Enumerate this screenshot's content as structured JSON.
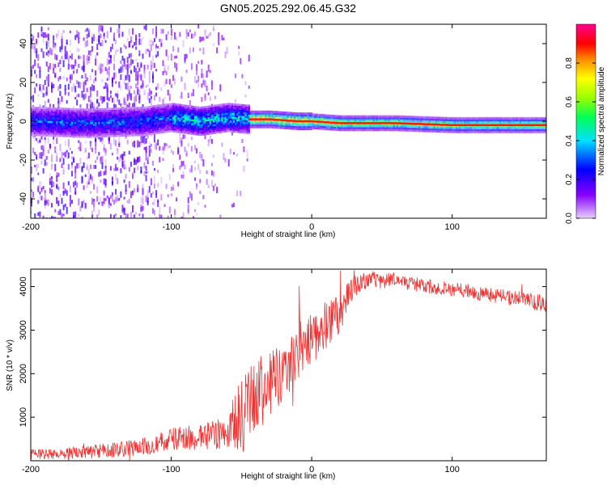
{
  "page": {
    "title": "GN05.2025.292.06.45.G32"
  },
  "chart_data": [
    {
      "type": "heatmap",
      "name": "spectrogram",
      "title": "GN05.2025.292.06.45.G32",
      "xlabel": "Height of straight line (km)",
      "ylabel": "Frequency (Hz)",
      "xlim": [
        -200,
        167
      ],
      "ylim": [
        -50,
        50
      ],
      "xticks": [
        -200,
        -100,
        0,
        100
      ],
      "xtick_labels": [
        "-200",
        "-100",
        "0",
        "100"
      ],
      "yticks": [
        -40,
        -20,
        0,
        20,
        40
      ],
      "ytick_labels": [
        "-40",
        "-20",
        "0",
        "20",
        "40"
      ],
      "ridge": {
        "description": "Dominant frequency ridge vs height",
        "x": [
          -200,
          -160,
          -120,
          -100,
          -80,
          -60,
          -45,
          -30,
          -10,
          0,
          20,
          60,
          100,
          120,
          167
        ],
        "y": [
          0,
          -1,
          0,
          2,
          0,
          2,
          1,
          1,
          0,
          0,
          -1,
          -1,
          -2,
          -2,
          -2
        ]
      },
      "colorbar": {
        "label": "Normalized spectral amplitude",
        "range": [
          0,
          1
        ],
        "ticks": [
          0.0,
          0.2,
          0.4,
          0.6,
          0.8
        ],
        "tick_labels": [
          "0.0",
          "0.2",
          "0.4",
          "0.6",
          "0.8"
        ],
        "colors": [
          "#e0c8ff",
          "#7a00ff",
          "#0033ff",
          "#00e0ff",
          "#00ff66",
          "#aaff00",
          "#ffff00",
          "#ff8000",
          "#ff0000",
          "#ff0090"
        ]
      }
    },
    {
      "type": "line",
      "name": "snr",
      "xlabel": "Height of straight line (km)",
      "ylabel": "SNR (10 * v/v)",
      "xlim": [
        -200,
        167
      ],
      "ylim": [
        0,
        4400
      ],
      "xticks": [
        -200,
        -100,
        0,
        100
      ],
      "xtick_labels": [
        "-200",
        "-100",
        "0",
        "100"
      ],
      "yticks": [
        1000,
        2000,
        3000,
        4000
      ],
      "ytick_labels": [
        "1000",
        "2000",
        "3000",
        "4000"
      ],
      "color": "#ee3333",
      "envelope": {
        "x": [
          -200,
          -180,
          -160,
          -140,
          -120,
          -100,
          -80,
          -60,
          -50,
          -40,
          -30,
          -20,
          -10,
          0,
          10,
          20,
          30,
          40,
          60,
          80,
          100,
          120,
          140,
          167
        ],
        "y": [
          150,
          160,
          200,
          250,
          320,
          500,
          550,
          650,
          1000,
          1500,
          1700,
          2000,
          2500,
          2900,
          3100,
          3400,
          4000,
          4150,
          4150,
          4000,
          3950,
          3850,
          3750,
          3600
        ],
        "spread": [
          120,
          120,
          150,
          180,
          200,
          250,
          300,
          400,
          1000,
          900,
          800,
          700,
          700,
          700,
          600,
          450,
          250,
          200,
          180,
          170,
          170,
          170,
          180,
          200
        ]
      }
    }
  ]
}
